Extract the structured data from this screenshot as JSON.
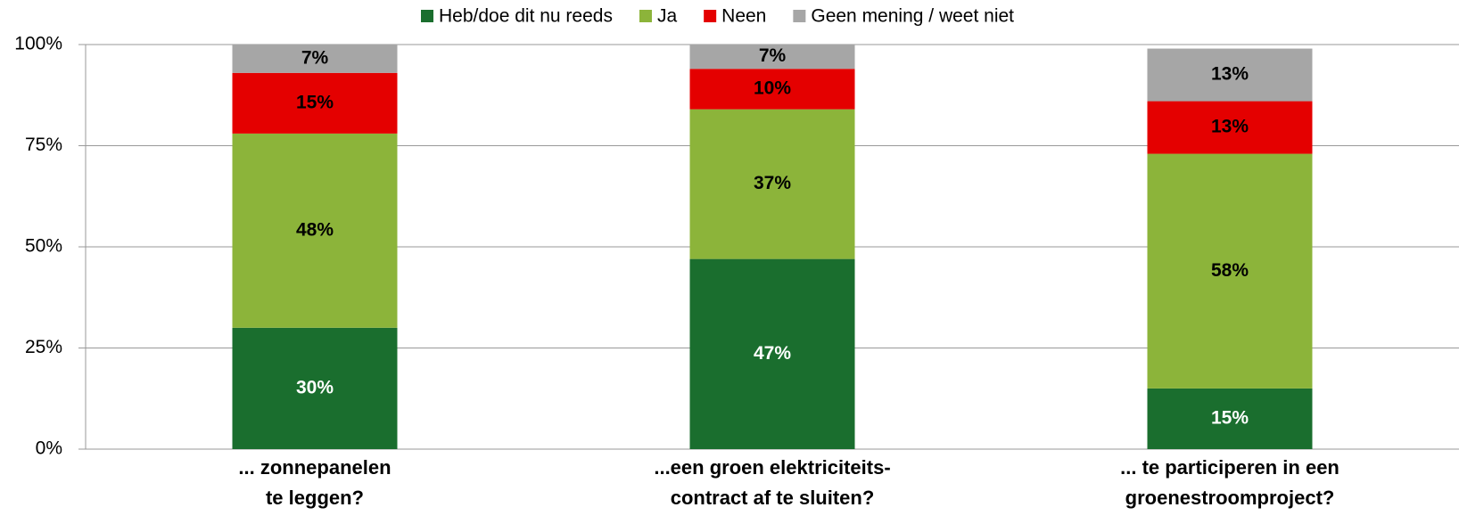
{
  "chart_data": {
    "type": "stacked_bar",
    "categories": [
      [
        "... zonnepanelen",
        "te leggen?"
      ],
      [
        "...een groen elektriciteits-",
        "contract af te sluiten?"
      ],
      [
        "... te participeren in een",
        "groenestroomproject?"
      ]
    ],
    "series": [
      {
        "name": "Heb/doe dit nu reeds",
        "color": "#1a6e2e",
        "label_color": "#ffffff",
        "values": [
          30,
          47,
          15
        ],
        "value_labels": [
          "30%",
          "47%",
          "15%"
        ]
      },
      {
        "name": "Ja",
        "color": "#8cb43a",
        "label_color": "#000000",
        "values": [
          48,
          37,
          58
        ],
        "value_labels": [
          "48%",
          "37%",
          "58%"
        ]
      },
      {
        "name": "Neen",
        "color": "#e40000",
        "label_color": "#000000",
        "values": [
          15,
          10,
          13
        ],
        "value_labels": [
          "15%",
          "10%",
          "13%"
        ]
      },
      {
        "name": "Geen mening / weet niet",
        "color": "#a6a6a6",
        "label_color": "#000000",
        "values": [
          7,
          7,
          13
        ],
        "value_labels": [
          "7%",
          "7%",
          "13%"
        ]
      }
    ],
    "ylim": [
      0,
      100
    ],
    "yticks": [
      {
        "value": 0,
        "label": "0%"
      },
      {
        "value": 25,
        "label": "25%"
      },
      {
        "value": 50,
        "label": "50%"
      },
      {
        "value": 75,
        "label": "75%"
      },
      {
        "value": 100,
        "label": "100%"
      }
    ],
    "grid": true,
    "legend": "top"
  }
}
